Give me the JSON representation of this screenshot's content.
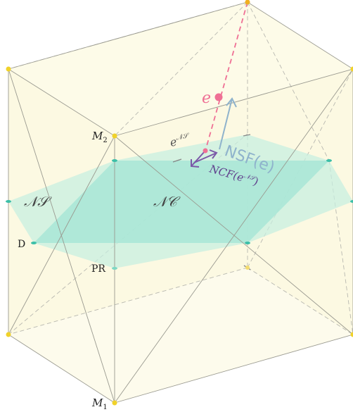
{
  "labels": {
    "m1": "M",
    "m1_sub": "1",
    "m2": "M",
    "m2_sub": "2",
    "d": "D",
    "pr": "PR",
    "ns_region": "𝒩𝒮",
    "nc_region": "𝒩𝒞",
    "e_point": "e",
    "e_ns": "e",
    "e_ns_sup": "𝒩𝒮",
    "nsf": "NSF(e)",
    "ncf": "NCF(e",
    "ncf_sup": "𝒩𝒮",
    "ncf_close": ")"
  },
  "colors": {
    "box_fill": "#fdfbe8",
    "box_edge": "#9a9a90",
    "ns_plane": "#c6efe0",
    "nc_plane": "#a8e6d6",
    "teal_point": "#3cbfa8",
    "yellow_point": "#f0d22a",
    "pink": "#ef7095",
    "blue_arrow": "#8fb3cc",
    "purple_arrow": "#7b58a8",
    "gray_text": "#666666"
  }
}
